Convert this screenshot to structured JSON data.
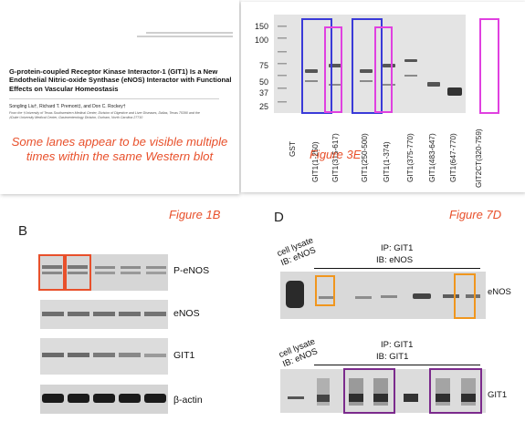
{
  "paper": {
    "title": "G-protein-coupled Receptor Kinase Interactor-1 (GIT1) Is a New Endothelial Nitric-oxide Synthase (eNOS) Interactor with Functional Effects on Vascular Homeostasis",
    "authors": "Songling Liu†, Richard T. Premont‡, and Don C. Rockey†",
    "affiliation_1": "From the †University of Texas Southwestern Medical Center, Division of Digestive and Liver Diseases, Dallas, Texas 75390 and the",
    "affiliation_2": "‡Duke University Medical Center, Gastroenterology Division, Durham, North Carolina 27710",
    "note": "Some lanes appear to be visible multiple times within the same Western blot"
  },
  "fig3e": {
    "label": "Figure 3E",
    "ladder": [
      "150",
      "100",
      "75",
      "50",
      "37",
      "25"
    ],
    "lanes": [
      "GST",
      "GIT1(1-250)",
      "GIT1(315-617)",
      "GIT1(250-500)",
      "GIT1(1-374)",
      "GIT1(375-770)",
      "GIT1(483-647)",
      "GIT1(647-770)",
      "GIT2CT(320-759)"
    ],
    "highlight_colors": {
      "blue": "#3a3ad8",
      "pink": "#e040e0"
    }
  },
  "fig1b": {
    "letter": "B",
    "label": "Figure 1B",
    "rows": [
      "P-eNOS",
      "eNOS",
      "GIT1",
      "β-actin"
    ],
    "highlight_color": "#e8502b"
  },
  "fig7d": {
    "letter": "D",
    "label": "Figure 7D",
    "top": {
      "side_label": "cell lysate\nIB: eNOS",
      "ip_line": "IP: GIT1",
      "ib_line": "IB: eNOS",
      "row_label": "eNOS",
      "highlight_color": "#f0961e"
    },
    "bottom": {
      "side_label": "cell lysate\nIB: eNOS",
      "ip_line": "IP: GIT1",
      "ib_line": "IB: GIT1",
      "row_label": "GIT1",
      "highlight_color": "#7b2a8c"
    }
  }
}
